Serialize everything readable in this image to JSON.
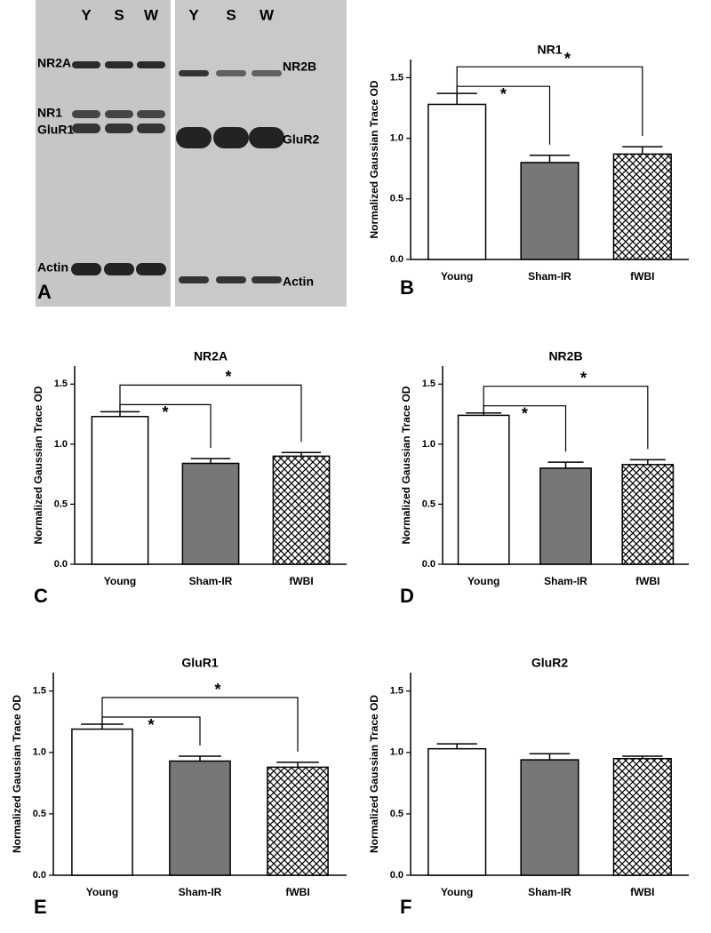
{
  "blot": {
    "panel": "A",
    "lanes": [
      "Y",
      "S",
      "W",
      "Y",
      "S",
      "W"
    ],
    "left_labels": [
      "NR2A",
      "NR1",
      "GluR1",
      "Actin"
    ],
    "right_labels": [
      "NR2B",
      "GluR2",
      "Actin"
    ]
  },
  "chart_data": [
    {
      "type": "bar",
      "panel": "B",
      "title": "NR1",
      "y_label": "Normalized Gaussian Trace OD",
      "categories": [
        "Young",
        "Sham-IR",
        "fWBI"
      ],
      "values": [
        1.28,
        0.8,
        0.87
      ],
      "errors": [
        0.09,
        0.06,
        0.06
      ],
      "colors": [
        "#ffffff",
        "#777777",
        "#ffffff"
      ],
      "hatch": [
        false,
        false,
        true
      ],
      "ylim": [
        0,
        1.65
      ],
      "yticks": [
        {
          "value": 0,
          "label": "0.0"
        },
        {
          "value": 0.5,
          "label": "0.5"
        },
        {
          "value": 1,
          "label": "1.0"
        },
        {
          "value": 1.5,
          "label": "1.5"
        }
      ],
      "annotations": [
        "*",
        "*"
      ]
    },
    {
      "type": "bar",
      "panel": "C",
      "title": "NR2A",
      "y_label": "Normalized Gaussian Trace OD",
      "categories": [
        "Young",
        "Sham-IR",
        "fWBI"
      ],
      "values": [
        1.23,
        0.84,
        0.9
      ],
      "errors": [
        0.04,
        0.04,
        0.03
      ],
      "colors": [
        "#ffffff",
        "#777777",
        "#ffffff"
      ],
      "hatch": [
        false,
        false,
        true
      ],
      "ylim": [
        0,
        1.65
      ],
      "yticks": [
        {
          "value": 0,
          "label": "0.0"
        },
        {
          "value": 0.5,
          "label": "0.5"
        },
        {
          "value": 1,
          "label": "1.0"
        },
        {
          "value": 1.5,
          "label": "1.5"
        }
      ],
      "annotations": [
        "*",
        "*"
      ]
    },
    {
      "type": "bar",
      "panel": "D",
      "title": "NR2B",
      "y_label": "Normalized Gaussian Trace OD",
      "categories": [
        "Young",
        "Sham-IR",
        "fWBI"
      ],
      "values": [
        1.24,
        0.8,
        0.83
      ],
      "errors": [
        0.02,
        0.05,
        0.04
      ],
      "colors": [
        "#ffffff",
        "#777777",
        "#ffffff"
      ],
      "hatch": [
        false,
        false,
        true
      ],
      "ylim": [
        0,
        1.65
      ],
      "yticks": [
        {
          "value": 0,
          "label": "0.0"
        },
        {
          "value": 0.5,
          "label": "0.5"
        },
        {
          "value": 1,
          "label": "1.0"
        },
        {
          "value": 1.5,
          "label": "1.5"
        }
      ],
      "annotations": [
        "*",
        "*"
      ]
    },
    {
      "type": "bar",
      "panel": "E",
      "title": "GluR1",
      "y_label": "Normalized Gaussian Trace OD",
      "categories": [
        "Young",
        "Sham-IR",
        "fWBI"
      ],
      "values": [
        1.19,
        0.93,
        0.88
      ],
      "errors": [
        0.04,
        0.04,
        0.04
      ],
      "colors": [
        "#ffffff",
        "#777777",
        "#ffffff"
      ],
      "hatch": [
        false,
        false,
        true
      ],
      "ylim": [
        0,
        1.65
      ],
      "yticks": [
        {
          "value": 0,
          "label": "0.0"
        },
        {
          "value": 0.5,
          "label": "0.5"
        },
        {
          "value": 1,
          "label": "1.0"
        },
        {
          "value": 1.5,
          "label": "1.5"
        }
      ],
      "annotations": [
        "*",
        "*"
      ]
    },
    {
      "type": "bar",
      "panel": "F",
      "title": "GluR2",
      "y_label": "Normalized Gaussian Trace OD",
      "categories": [
        "Young",
        "Sham-IR",
        "fWBI"
      ],
      "values": [
        1.03,
        0.94,
        0.95
      ],
      "errors": [
        0.04,
        0.05,
        0.02
      ],
      "colors": [
        "#ffffff",
        "#777777",
        "#ffffff"
      ],
      "hatch": [
        false,
        false,
        true
      ],
      "ylim": [
        0,
        1.65
      ],
      "yticks": [
        {
          "value": 0,
          "label": "0.0"
        },
        {
          "value": 0.5,
          "label": "0.5"
        },
        {
          "value": 1,
          "label": "1.0"
        },
        {
          "value": 1.5,
          "label": "1.5"
        }
      ],
      "annotations": []
    }
  ]
}
